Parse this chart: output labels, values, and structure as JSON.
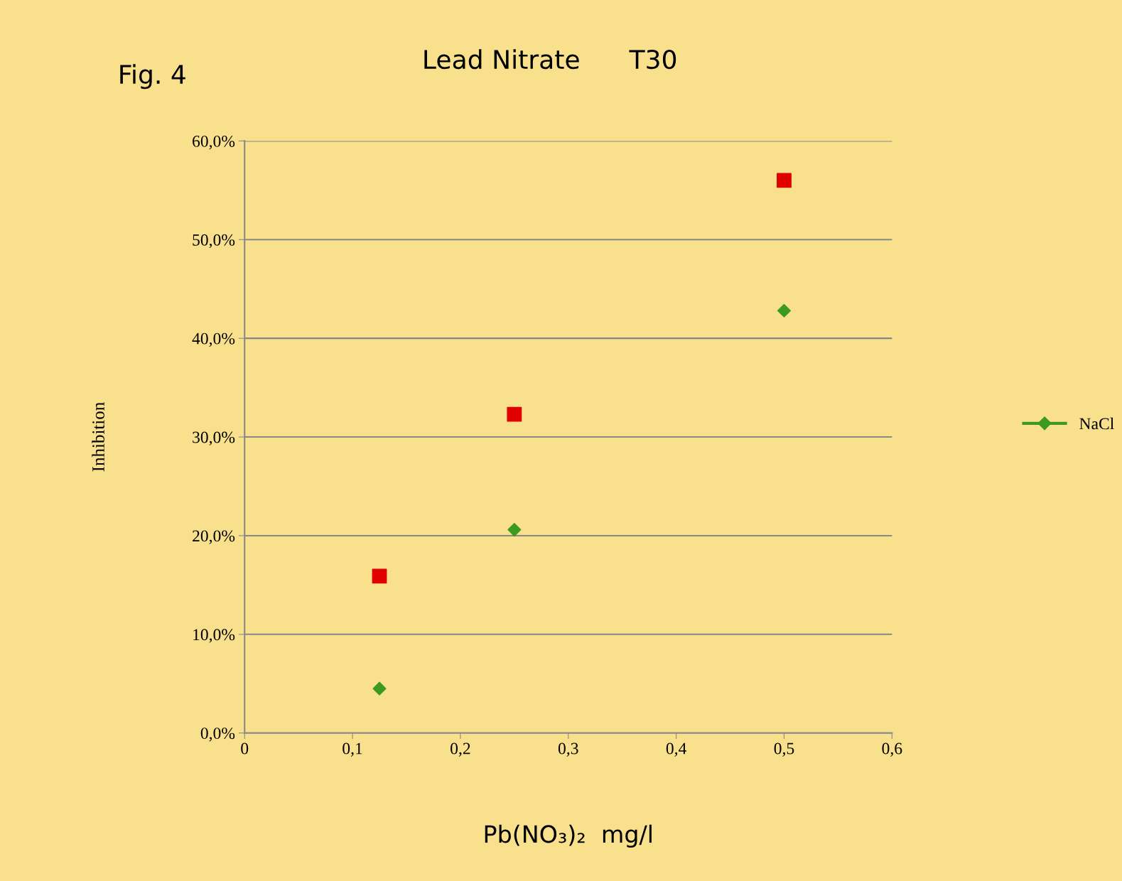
{
  "chart_data": {
    "type": "scatter",
    "title": "Lead Nitrate      T30",
    "xlabel": "Pb(NO₃)₂  mg/l",
    "ylabel": "Inhibition",
    "annotations": [
      "Fig. 4"
    ],
    "x": [
      0.125,
      0.25,
      0.5
    ],
    "series": [
      {
        "name": "NaCl",
        "color": "#3c9a1e",
        "marker": "diamond",
        "values": [
          0.045,
          0.206,
          0.428
        ]
      },
      {
        "color": "#e00000",
        "marker": "square",
        "values": [
          0.159,
          0.323,
          0.56
        ]
      }
    ],
    "xlim": [
      0,
      0.6
    ],
    "xticks": [
      {
        "value": 0,
        "label": "0"
      },
      {
        "value": 0.1,
        "label": "0,1"
      },
      {
        "value": 0.2,
        "label": "0,2"
      },
      {
        "value": 0.3,
        "label": "0,3"
      },
      {
        "value": 0.4,
        "label": "0,4"
      },
      {
        "value": 0.5,
        "label": "0,5"
      },
      {
        "value": 0.6,
        "label": "0,6"
      }
    ],
    "ylim": [
      0,
      0.6
    ],
    "yticks": [
      {
        "value": 0,
        "label": "0,0%"
      },
      {
        "value": 0.1,
        "label": "10,0%"
      },
      {
        "value": 0.2,
        "label": "20,0%"
      },
      {
        "value": 0.3,
        "label": "30,0%"
      },
      {
        "value": 0.4,
        "label": "40,0%"
      },
      {
        "value": 0.5,
        "label": "50,0%"
      },
      {
        "value": 0.6,
        "label": "60,0%"
      }
    ],
    "grid": "y",
    "legend": "right"
  }
}
